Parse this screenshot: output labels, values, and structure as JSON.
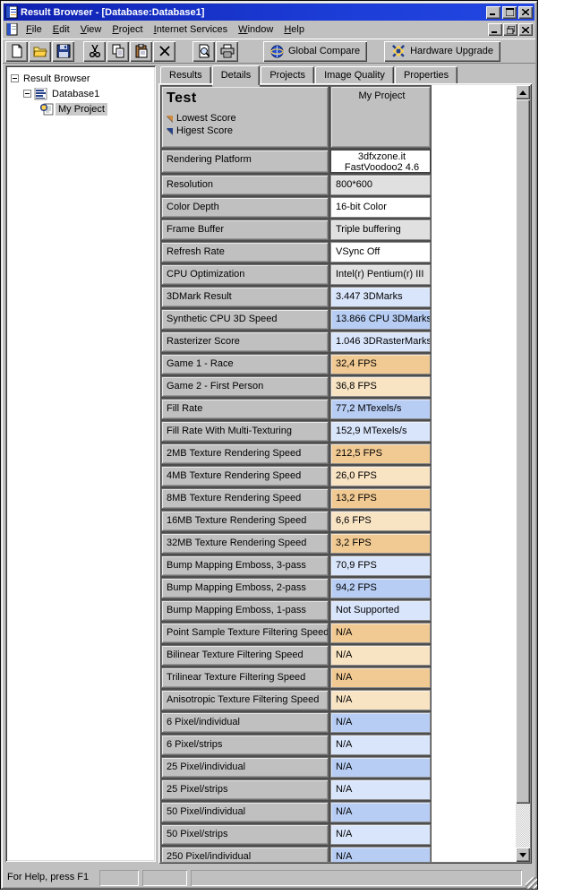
{
  "window": {
    "title": "Result Browser - [Database:Database1]"
  },
  "menu": {
    "items": [
      "File",
      "Edit",
      "View",
      "Project",
      "Internet Services",
      "Window",
      "Help"
    ]
  },
  "toolbar": {
    "icon_buttons": [
      "new",
      "open",
      "save",
      "cut",
      "copy",
      "paste",
      "delete",
      "preview",
      "print"
    ],
    "global_compare_label": "Global Compare",
    "hardware_upgrade_label": "Hardware Upgrade"
  },
  "tree": {
    "root_label": "Result Browser",
    "database_label": "Database1",
    "project_label": "My Project"
  },
  "tabs": {
    "items": [
      "Results",
      "Details",
      "Projects",
      "Image Quality",
      "Properties"
    ],
    "active": "Details"
  },
  "table": {
    "header": {
      "title": "Test",
      "lowest_label": "Lowest Score",
      "highest_label": "Higest Score",
      "column_label": "My Project"
    },
    "rows": [
      {
        "label": "Rendering Platform",
        "value": "3dfxzone.it\nFastVoodoo2 4.6",
        "style": "platform"
      },
      {
        "label": "Resolution",
        "value": "800*600",
        "style": "gray"
      },
      {
        "label": "Color Depth",
        "value": "16-bit Color",
        "style": "white"
      },
      {
        "label": "Frame Buffer",
        "value": "Triple buffering",
        "style": "gray"
      },
      {
        "label": "Refresh Rate",
        "value": "VSync Off",
        "style": "white"
      },
      {
        "label": "CPU Optimization",
        "value": "Intel(r) Pentium(r) III",
        "style": "gray"
      },
      {
        "label": "3DMark Result",
        "value": "3.447 3DMarks",
        "style": "blue-light"
      },
      {
        "label": "Synthetic CPU 3D Speed",
        "value": "13.866 CPU 3DMarks",
        "style": "blue-dark"
      },
      {
        "label": "Rasterizer Score",
        "value": "1.046 3DRasterMarks",
        "style": "blue-light"
      },
      {
        "label": "Game 1 - Race",
        "value": "32,4 FPS",
        "style": "orange-dark"
      },
      {
        "label": "Game 2 - First Person",
        "value": "36,8 FPS",
        "style": "orange-light"
      },
      {
        "label": "Fill Rate",
        "value": "77,2 MTexels/s",
        "style": "blue-dark"
      },
      {
        "label": "Fill Rate With Multi-Texturing",
        "value": "152,9 MTexels/s",
        "style": "blue-light"
      },
      {
        "label": "2MB Texture Rendering Speed",
        "value": "212,5 FPS",
        "style": "orange-dark"
      },
      {
        "label": "4MB Texture Rendering Speed",
        "value": "26,0 FPS",
        "style": "orange-light"
      },
      {
        "label": "8MB Texture Rendering Speed",
        "value": "13,2 FPS",
        "style": "orange-dark"
      },
      {
        "label": "16MB Texture Rendering Speed",
        "value": "6,6 FPS",
        "style": "orange-light"
      },
      {
        "label": "32MB Texture Rendering Speed",
        "value": "3,2 FPS",
        "style": "orange-dark"
      },
      {
        "label": "Bump Mapping Emboss, 3-pass",
        "value": "70,9 FPS",
        "style": "blue-light"
      },
      {
        "label": "Bump Mapping Emboss, 2-pass",
        "value": "94,2 FPS",
        "style": "blue-dark"
      },
      {
        "label": "Bump Mapping Emboss, 1-pass",
        "value": "Not Supported",
        "style": "blue-light"
      },
      {
        "label": "Point Sample Texture Filtering Speed",
        "value": "N/A",
        "style": "orange-dark"
      },
      {
        "label": "Bilinear Texture Filtering Speed",
        "value": "N/A",
        "style": "orange-light"
      },
      {
        "label": "Trilinear Texture Filtering Speed",
        "value": "N/A",
        "style": "orange-dark"
      },
      {
        "label": "Anisotropic Texture Filtering Speed",
        "value": "N/A",
        "style": "orange-light"
      },
      {
        "label": "6 Pixel/individual",
        "value": "N/A",
        "style": "blue-dark"
      },
      {
        "label": "6 Pixel/strips",
        "value": "N/A",
        "style": "blue-light"
      },
      {
        "label": "25 Pixel/individual",
        "value": "N/A",
        "style": "blue-dark"
      },
      {
        "label": "25 Pixel/strips",
        "value": "N/A",
        "style": "blue-light"
      },
      {
        "label": "50 Pixel/individual",
        "value": "N/A",
        "style": "blue-dark"
      },
      {
        "label": "50 Pixel/strips",
        "value": "N/A",
        "style": "blue-light"
      },
      {
        "label": "250 Pixel/individual",
        "value": "N/A",
        "style": "blue-dark"
      }
    ]
  },
  "status_bar": {
    "message": "For Help, press F1"
  },
  "colors": {
    "white": "#ffffff",
    "gray": "#e0e0e0",
    "platform": "#ffffff",
    "blue-light": "#d9e5fb",
    "blue-dark": "#b7cdf4",
    "orange-light": "#f8e3c3",
    "orange-dark": "#f1c992",
    "titlebar_blue": "#1c3cd6",
    "legend_low": "#cf8a3f",
    "legend_high": "#24418e"
  }
}
